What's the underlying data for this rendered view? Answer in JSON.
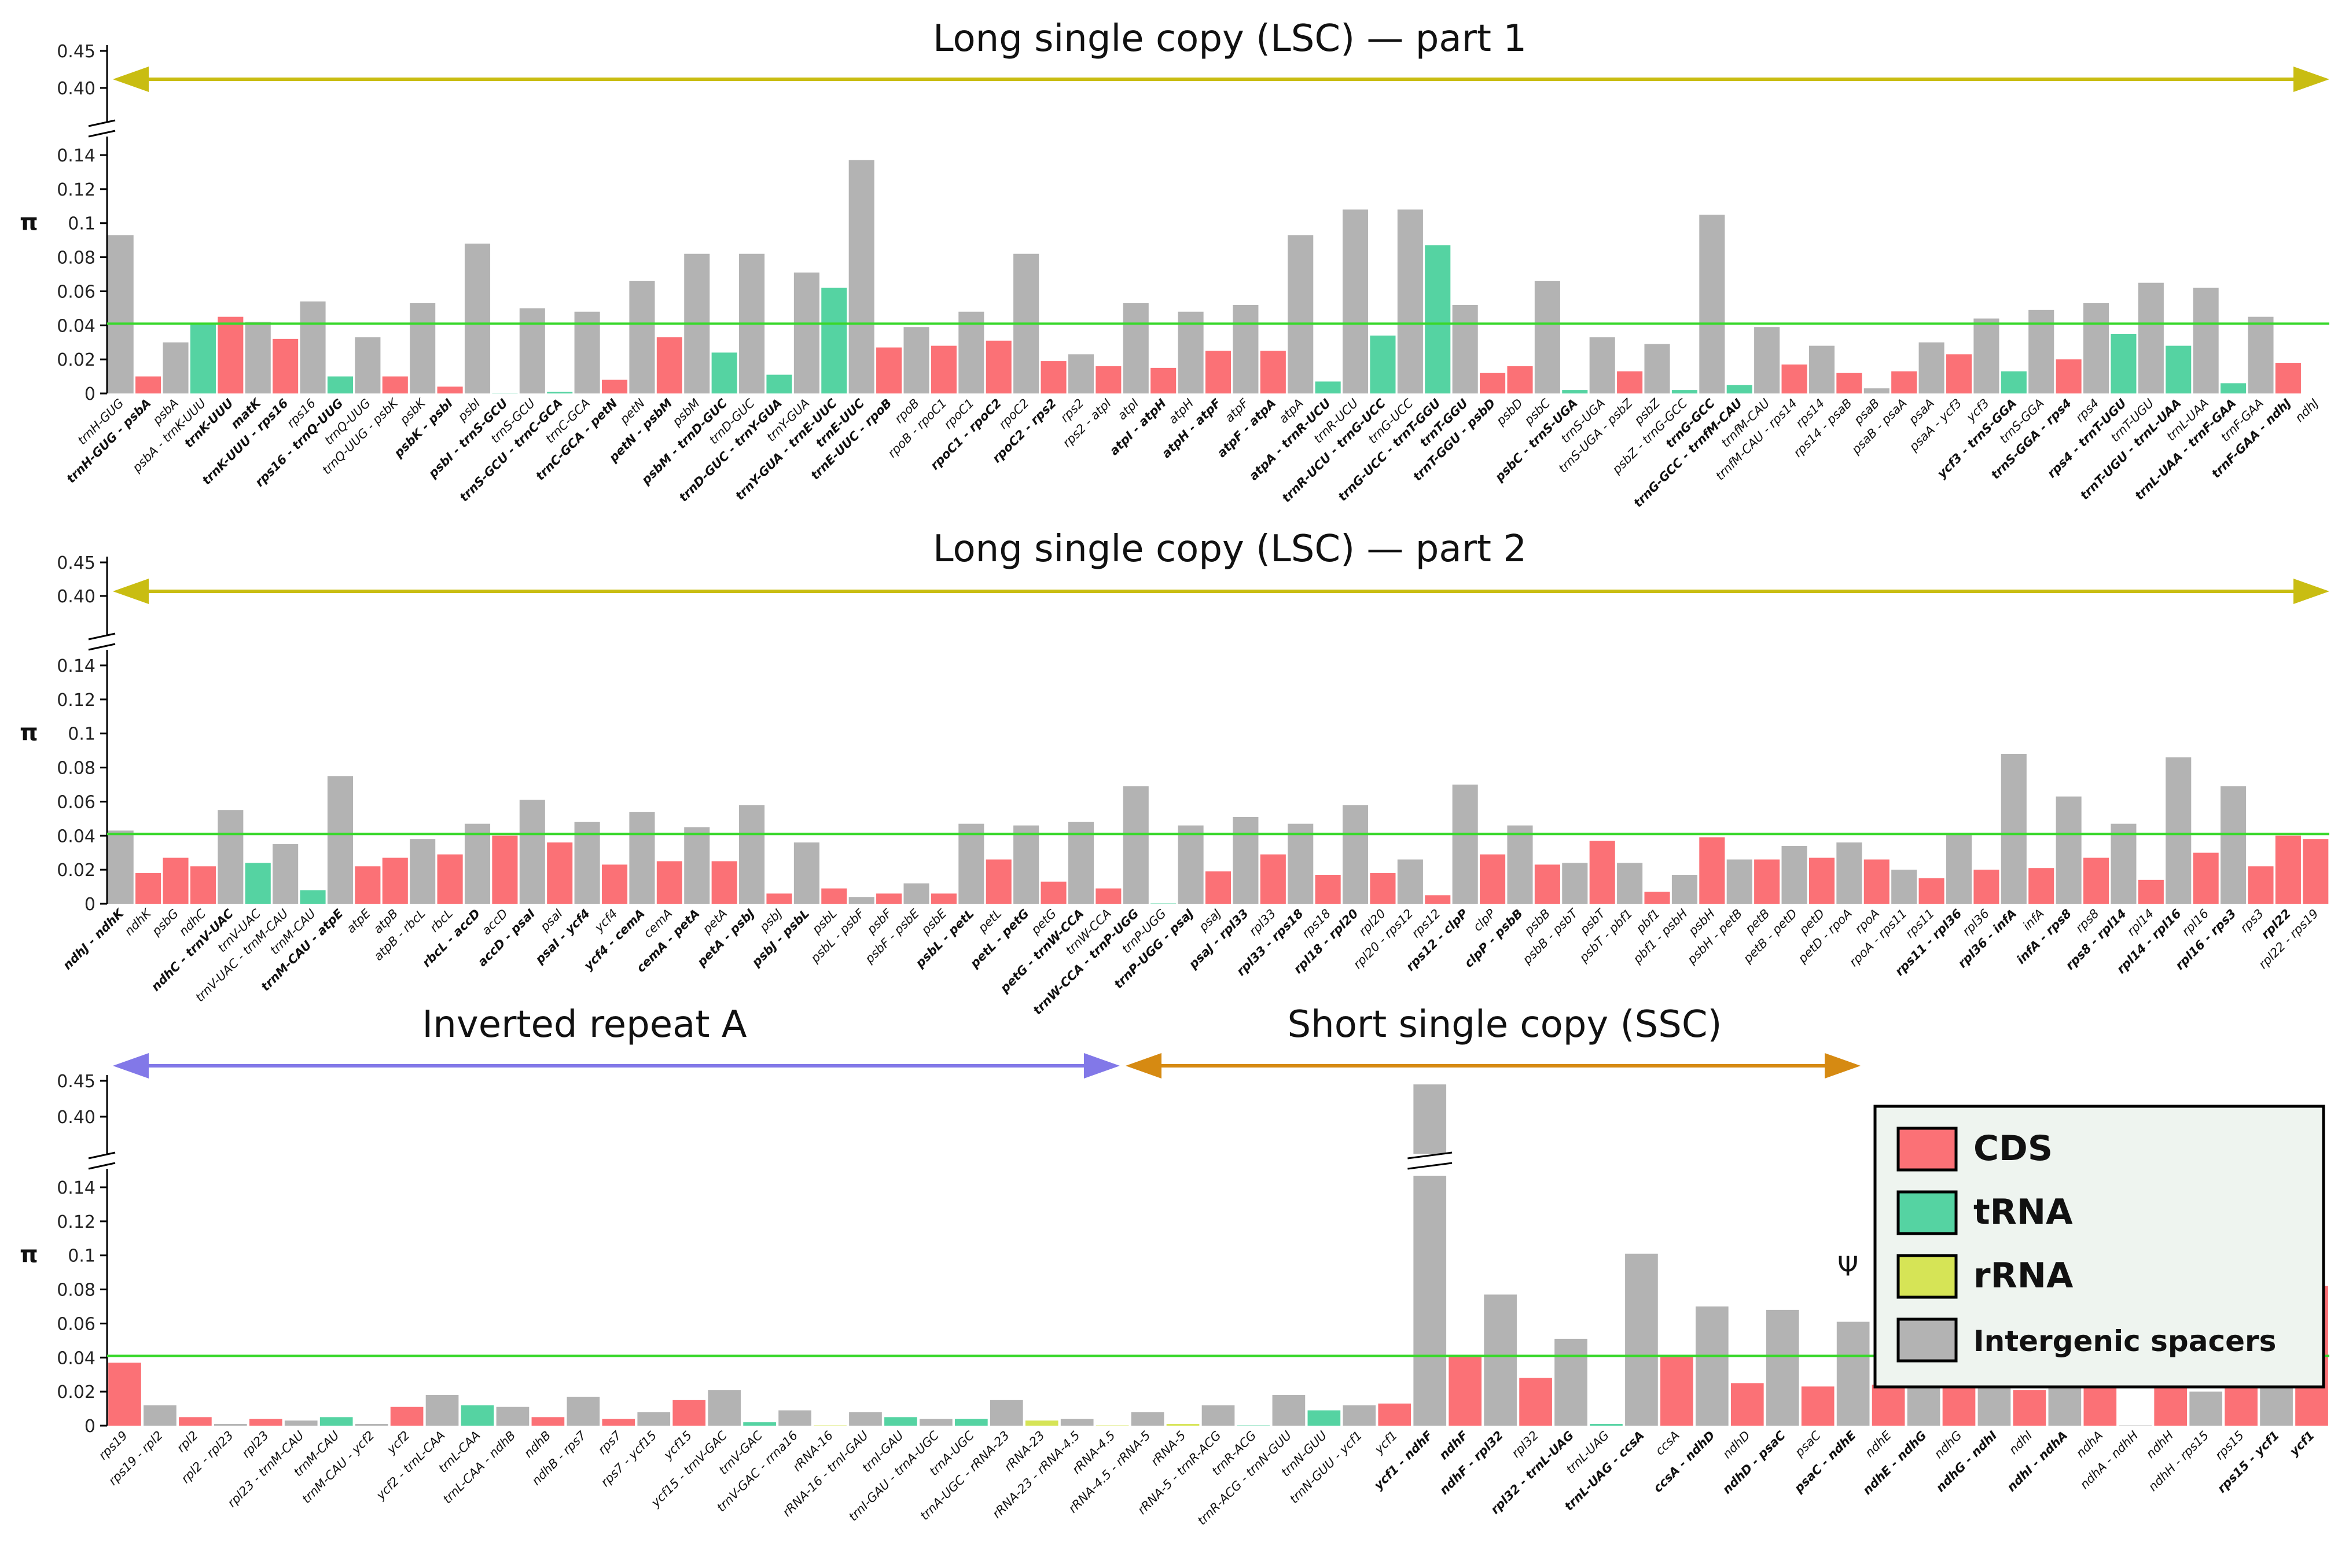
{
  "colors": {
    "CDS": "#fb7176",
    "tRNA": "#55d3a2",
    "rRNA": "#d6e456",
    "spacer": "#b3b3b3",
    "threshold": "#39d82c",
    "arrow_lsc": "#c9bd12",
    "arrow_ira": "#8278e8",
    "arrow_ssc": "#d68a12",
    "legend_bg": "#eef4ef"
  },
  "legend": [
    {
      "label": "CDS",
      "color_key": "CDS"
    },
    {
      "label": "tRNA",
      "color_key": "tRNA"
    },
    {
      "label": "rRNA",
      "color_key": "rRNA"
    },
    {
      "label": "Intergenic spacers",
      "color_key": "spacer"
    }
  ],
  "chart_data": [
    {
      "type": "bar",
      "region_label": "Long single copy (LSC) — part 1",
      "ylabel": "π",
      "threshold": 0.041,
      "yticks_low": [
        "0",
        "0.02",
        "0.04",
        "0.06",
        "0.08",
        "0.1",
        "0.12",
        "0.14"
      ],
      "yticks_high": [
        "0.40",
        "0.45"
      ],
      "categories": [
        "trnH-GUG",
        "trnH-GUG - psbA",
        "psbA",
        "psbA - trnK-UUU",
        "trnK-UUU",
        "matK",
        "trnK-UUU - rps16",
        "rps16",
        "rps16 - trnQ-UUG",
        "trnQ-UUG",
        "trnQ-UUG - psbK",
        "psbK",
        "psbK - psbI",
        "psbI",
        "psbI - trnS-GCU",
        "trnS-GCU",
        "trnS-GCU - trnC-GCA",
        "trnC-GCA",
        "trnC-GCA - petN",
        "petN",
        "petN - psbM",
        "psbM",
        "psbM - trnD-GUC",
        "trnD-GUC",
        "trnD-GUC - trnY-GUA",
        "trnY-GUA",
        "trnY-GUA - trnE-UUC",
        "trnE-UUC",
        "trnE-UUC - rpoB",
        "rpoB",
        "rpoB - rpoC1",
        "rpoC1",
        "rpoC1 - rpoC2",
        "rpoC2",
        "rpoC2 - rps2",
        "rps2",
        "rps2 - atpI",
        "atpI",
        "atpI - atpH",
        "atpH",
        "atpH - atpF",
        "atpF",
        "atpF - atpA",
        "atpA",
        "atpA - trnR-UCU",
        "trnR-UCU",
        "trnR-UCU - trnG-UCC",
        "trnG-UCC",
        "trnG-UCC - trnT-GGU",
        "trnT-GGU",
        "trnT-GGU - psbD",
        "psbD",
        "psbC",
        "psbC - trnS-UGA",
        "trnS-UGA",
        "trnS-UGA - psbZ",
        "psbZ",
        "psbZ - trnG-GCC",
        "trnG-GCC",
        "trnG-GCC - trnfM-CAU",
        "trnfM-CAU",
        "trnfM-CAU - rps14",
        "rps14",
        "rps14 - psaB",
        "psaB",
        "psaB - psaA",
        "psaA",
        "psaA - ycf3",
        "ycf3",
        "ycf3 - trnS-GGA",
        "trnS-GGA",
        "trnS-GGA - rps4",
        "rps4",
        "rps4 - trnT-UGU",
        "trnT-UGU",
        "trnT-UGU - trnL-UAA",
        "trnL-UAA",
        "trnL-UAA - trnF-GAA",
        "trnF-GAA",
        "trnF-GAA - ndhJ",
        "ndhJ"
      ],
      "bold": [
        false,
        true,
        false,
        false,
        true,
        true,
        true,
        false,
        true,
        false,
        false,
        false,
        true,
        false,
        true,
        false,
        true,
        false,
        true,
        false,
        true,
        false,
        true,
        false,
        true,
        false,
        true,
        true,
        true,
        false,
        false,
        false,
        true,
        false,
        true,
        false,
        false,
        false,
        true,
        false,
        true,
        false,
        true,
        false,
        true,
        false,
        true,
        false,
        true,
        true,
        true,
        false,
        false,
        true,
        false,
        false,
        false,
        false,
        true,
        true,
        false,
        false,
        false,
        false,
        false,
        false,
        false,
        false,
        false,
        true,
        false,
        true,
        false,
        true,
        false,
        true,
        false,
        true,
        false,
        true,
        false
      ],
      "kinds": [
        "spacer",
        "CDS",
        "spacer",
        "tRNA",
        "CDS",
        "spacer",
        "CDS",
        "spacer",
        "tRNA",
        "spacer",
        "CDS",
        "spacer",
        "CDS",
        "spacer",
        "tRNA",
        "spacer",
        "tRNA",
        "spacer",
        "CDS",
        "spacer",
        "CDS",
        "spacer",
        "tRNA",
        "spacer",
        "tRNA",
        "spacer",
        "tRNA",
        "spacer",
        "CDS",
        "spacer",
        "CDS",
        "spacer",
        "CDS",
        "spacer",
        "CDS",
        "spacer",
        "CDS",
        "spacer",
        "CDS",
        "spacer",
        "CDS",
        "spacer",
        "CDS",
        "spacer",
        "tRNA",
        "spacer",
        "tRNA",
        "spacer",
        "tRNA",
        "spacer",
        "CDS",
        "CDS",
        "spacer",
        "tRNA",
        "spacer",
        "CDS",
        "spacer",
        "tRNA",
        "spacer",
        "tRNA",
        "spacer",
        "CDS",
        "spacer",
        "CDS",
        "spacer",
        "CDS",
        "spacer",
        "CDS",
        "spacer",
        "tRNA",
        "spacer",
        "CDS",
        "spacer",
        "tRNA",
        "spacer",
        "tRNA",
        "spacer",
        "tRNA",
        "spacer",
        "CDS",
        null
      ],
      "values": [
        0.093,
        0.01,
        0.03,
        0.041,
        0.045,
        0.042,
        0.032,
        0.054,
        0.01,
        0.033,
        0.01,
        0.053,
        0.004,
        0.088,
        0.0,
        0.05,
        0.001,
        0.048,
        0.008,
        0.066,
        0.033,
        0.082,
        0.024,
        0.082,
        0.011,
        0.071,
        0.062,
        0.137,
        0.027,
        0.039,
        0.028,
        0.048,
        0.031,
        0.082,
        0.019,
        0.023,
        0.016,
        0.053,
        0.015,
        0.048,
        0.025,
        0.052,
        0.025,
        0.093,
        0.007,
        0.108,
        0.034,
        0.108,
        0.087,
        0.052,
        0.012,
        0.016,
        0.066,
        0.002,
        0.033,
        0.013,
        0.029,
        0.002,
        0.105,
        0.005,
        0.039,
        0.017,
        0.028,
        0.012,
        0.003,
        0.013,
        0.03,
        0.023,
        0.044,
        0.013,
        0.049,
        0.02,
        0.053,
        0.035,
        0.065,
        0.028,
        0.062,
        0.006,
        0.045,
        0.018,
        null
      ]
    },
    {
      "type": "bar",
      "region_label": "Long single copy (LSC) — part 2",
      "ylabel": "π",
      "threshold": 0.041,
      "yticks_low": [
        "0",
        "0.02",
        "0.04",
        "0.06",
        "0.08",
        "0.1",
        "0.12",
        "0.14"
      ],
      "yticks_high": [
        "0.40",
        "0.45"
      ],
      "categories": [
        "ndhJ - ndhK",
        "ndhK",
        "psbG",
        "ndhC",
        "ndhC - trnV-UAC",
        "trnV-UAC",
        "trnV-UAC - trnM-CAU",
        "trnM-CAU",
        "trnM-CAU - atpE",
        "atpE",
        "atpB",
        "atpB - rbcL",
        "rbcL",
        "rbcL - accD",
        "accD",
        "accD - psaI",
        "psaI",
        "psaI - ycf4",
        "ycf4",
        "ycf4 - cemA",
        "cemA",
        "cemA - petA",
        "petA",
        "petA - psbJ",
        "psbJ",
        "psbJ - psbL",
        "psbL",
        "psbL - psbF",
        "psbF",
        "psbF - psbE",
        "psbE",
        "psbL - petL",
        "petL",
        "petL - petG",
        "petG",
        "petG - trnW-CCA",
        "trnW-CCA",
        "trnW-CCA - trnP-UGG",
        "trnP-UGG",
        "trnP-UGG - psaJ",
        "psaJ",
        "psaJ - rpl33",
        "rpl33",
        "rpl33 - rps18",
        "rps18",
        "rpl18 - rpl20",
        "rpl20",
        "rpl20 - rps12",
        "rps12",
        "rps12 - clpP",
        "clpP",
        "clpP - psbB",
        "psbB",
        "psbB - psbT",
        "psbT",
        "psbT - pbf1",
        "pbf1",
        "pbf1 - psbH",
        "psbH",
        "psbH - petB",
        "petB",
        "petB - petD",
        "petD",
        "petD - rpoA",
        "rpoA",
        "rpoA - rps11",
        "rps11",
        "rps11 - rpl36",
        "rpl36",
        "rpl36 - infA",
        "infA",
        "infA - rps8",
        "rps8",
        "rps8 - rpl14",
        "rpl14",
        "rpl14 - rpl16",
        "rpl16",
        "rpl16 - rps3",
        "rps3",
        "rpl22",
        "rpl22 - rps19"
      ],
      "bold": [
        true,
        false,
        false,
        false,
        true,
        false,
        false,
        false,
        true,
        false,
        false,
        false,
        false,
        true,
        false,
        true,
        false,
        true,
        false,
        true,
        false,
        true,
        false,
        true,
        false,
        true,
        false,
        false,
        false,
        false,
        false,
        true,
        false,
        true,
        false,
        true,
        false,
        true,
        false,
        true,
        false,
        true,
        false,
        true,
        false,
        true,
        false,
        false,
        false,
        true,
        false,
        true,
        false,
        false,
        false,
        false,
        false,
        false,
        false,
        false,
        false,
        false,
        false,
        false,
        false,
        false,
        false,
        true,
        false,
        true,
        false,
        true,
        false,
        true,
        false,
        true,
        false,
        true,
        false,
        true,
        false
      ],
      "kinds": [
        "spacer",
        "CDS",
        "CDS",
        "CDS",
        "spacer",
        "tRNA",
        "spacer",
        "tRNA",
        "spacer",
        "CDS",
        "CDS",
        "spacer",
        "CDS",
        "spacer",
        "CDS",
        "spacer",
        "CDS",
        "spacer",
        "CDS",
        "spacer",
        "CDS",
        "spacer",
        "CDS",
        "spacer",
        "CDS",
        "spacer",
        "CDS",
        "spacer",
        "CDS",
        "spacer",
        "CDS",
        "spacer",
        "CDS",
        "spacer",
        "CDS",
        "spacer",
        "CDS",
        "spacer",
        "tRNA",
        "spacer",
        "CDS",
        "spacer",
        "CDS",
        "spacer",
        "CDS",
        "spacer",
        "CDS",
        "spacer",
        "CDS",
        "spacer",
        "CDS",
        "spacer",
        "CDS",
        "spacer",
        "CDS",
        "spacer",
        "CDS",
        "spacer",
        "CDS",
        "spacer",
        "CDS",
        "spacer",
        "CDS",
        "spacer",
        "CDS",
        "spacer",
        "CDS",
        "spacer",
        "CDS",
        "spacer",
        "CDS",
        "spacer",
        "CDS",
        "spacer",
        "CDS",
        "spacer",
        "CDS",
        "spacer",
        "CDS",
        "CDS",
        "CDS"
      ],
      "values": [
        0.043,
        0.018,
        0.027,
        0.022,
        0.055,
        0.024,
        0.035,
        0.008,
        0.075,
        0.022,
        0.027,
        0.038,
        0.029,
        0.047,
        0.04,
        0.061,
        0.036,
        0.048,
        0.023,
        0.054,
        0.025,
        0.045,
        0.025,
        0.058,
        0.006,
        0.036,
        0.009,
        0.004,
        0.006,
        0.012,
        0.006,
        0.047,
        0.026,
        0.046,
        0.013,
        0.048,
        0.009,
        0.069,
        0.0,
        0.046,
        0.019,
        0.051,
        0.029,
        0.047,
        0.017,
        0.058,
        0.018,
        0.026,
        0.005,
        0.07,
        0.029,
        0.046,
        0.023,
        0.024,
        0.037,
        0.024,
        0.007,
        0.017,
        0.039,
        0.026,
        0.026,
        0.034,
        0.027,
        0.036,
        0.026,
        0.02,
        0.015,
        0.041,
        0.02,
        0.088,
        0.021,
        0.063,
        0.027,
        0.047,
        0.014,
        0.086,
        0.03,
        0.069,
        0.022,
        0.04,
        0.038
      ]
    },
    {
      "type": "bar",
      "region_label_left": "Inverted repeat A",
      "region_label_right": "Short single copy (SSC)",
      "ylabel": "π",
      "threshold": 0.041,
      "yticks_low": [
        "0",
        "0.02",
        "0.04",
        "0.06",
        "0.08",
        "0.1",
        "0.12",
        "0.14"
      ],
      "yticks_high": [
        "0.40",
        "0.45"
      ],
      "annotation": "Ψ",
      "categories": [
        "rps19",
        "rps19 - rpl2",
        "rpl2",
        "rpl2 - rpl23",
        "rpl23",
        "rpl23 - trnM-CAU",
        "trnM-CAU",
        "trnM-CAU - ycf2",
        "ycf2",
        "ycf2 - trnL-CAA",
        "trnL-CAA",
        "trnL-CAA - ndhB",
        "ndhB",
        "ndhB - rps7",
        "rps7",
        "rps7 - ycf15",
        "ycf15",
        "ycf15 - trnV-GAC",
        "trnV-GAC",
        "trnV-GAC - rrna16",
        "rRNA-16",
        "rRNA-16 - trnI-GAU",
        "trnI-GAU",
        "trnI-GAU - trnA-UGC",
        "trnA-UGC",
        "trnA-UGC - rRNA-23",
        "rRNA-23",
        "rRNA-23 - rRNA-4.5",
        "rRNA-4.5",
        "rRNA-4.5 - rRNA-5",
        "rRNA-5",
        "rRNA-5 - trnR-ACG",
        "trnR-ACG",
        "trnR-ACG - trnN-GUU",
        "trnN-GUU",
        "trnN-GUU - ycf1",
        "ycf1",
        "ycf1 - ndhF",
        "ndhF",
        "ndhF - rpl32",
        "rpl32",
        "rpl32 - trnL-UAG",
        "trnL-UAG",
        "trnL-UAG - ccsA",
        "ccsA",
        "ccsA - ndhD",
        "ndhD",
        "ndhD - psaC",
        "psaC",
        "psaC - ndhE",
        "ndhE",
        "ndhE - ndhG",
        "ndhG",
        "ndhG - ndhI",
        "ndhI",
        "ndhI - ndhA",
        "ndhA",
        "ndhA - ndhH",
        "ndhH",
        "ndhH - rps15",
        "rps15",
        "rps15 - ycf1",
        "ycf1"
      ],
      "bold": [
        false,
        false,
        false,
        false,
        false,
        false,
        false,
        false,
        false,
        false,
        false,
        false,
        false,
        false,
        false,
        false,
        false,
        false,
        false,
        false,
        false,
        false,
        false,
        false,
        false,
        false,
        false,
        false,
        false,
        false,
        false,
        false,
        false,
        false,
        false,
        false,
        false,
        true,
        true,
        true,
        false,
        true,
        false,
        true,
        false,
        true,
        false,
        true,
        false,
        true,
        false,
        true,
        false,
        true,
        false,
        true,
        false,
        false,
        false,
        false,
        false,
        true,
        true
      ],
      "kinds": [
        "CDS",
        "spacer",
        "CDS",
        "spacer",
        "CDS",
        "spacer",
        "tRNA",
        "spacer",
        "CDS",
        "spacer",
        "tRNA",
        "spacer",
        "CDS",
        "spacer",
        "CDS",
        "spacer",
        "CDS",
        "spacer",
        "tRNA",
        "spacer",
        "rRNA",
        "spacer",
        "tRNA",
        "spacer",
        "tRNA",
        "spacer",
        "rRNA",
        "spacer",
        "rRNA",
        "spacer",
        "rRNA",
        "spacer",
        "tRNA",
        "spacer",
        "tRNA",
        "spacer",
        "CDS",
        "spacer",
        "CDS",
        "spacer",
        "CDS",
        "spacer",
        "tRNA",
        "spacer",
        "CDS",
        "spacer",
        "CDS",
        "spacer",
        "CDS",
        "spacer",
        "CDS",
        "spacer",
        "CDS",
        "spacer",
        "CDS",
        "spacer",
        "CDS",
        "spacer",
        "CDS",
        "spacer",
        "CDS",
        "spacer",
        "CDS"
      ],
      "values": [
        0.037,
        0.012,
        0.005,
        0.001,
        0.004,
        0.003,
        0.005,
        0.001,
        0.011,
        0.018,
        0.012,
        0.011,
        0.005,
        0.017,
        0.004,
        0.008,
        0.015,
        0.021,
        0.002,
        0.009,
        0.0,
        0.008,
        0.005,
        0.004,
        0.004,
        0.015,
        0.003,
        0.004,
        0.0,
        0.008,
        0.001,
        0.012,
        0.0,
        0.018,
        0.009,
        0.012,
        0.013,
        0.445,
        0.041,
        0.077,
        0.028,
        0.051,
        0.001,
        0.101,
        0.041,
        0.07,
        0.025,
        0.068,
        0.023,
        0.061,
        0.024,
        0.063,
        0.028,
        0.047,
        0.021,
        0.049,
        0.033,
        0.0,
        0.022,
        0.02,
        0.036,
        0.101,
        0.082
      ]
    }
  ]
}
